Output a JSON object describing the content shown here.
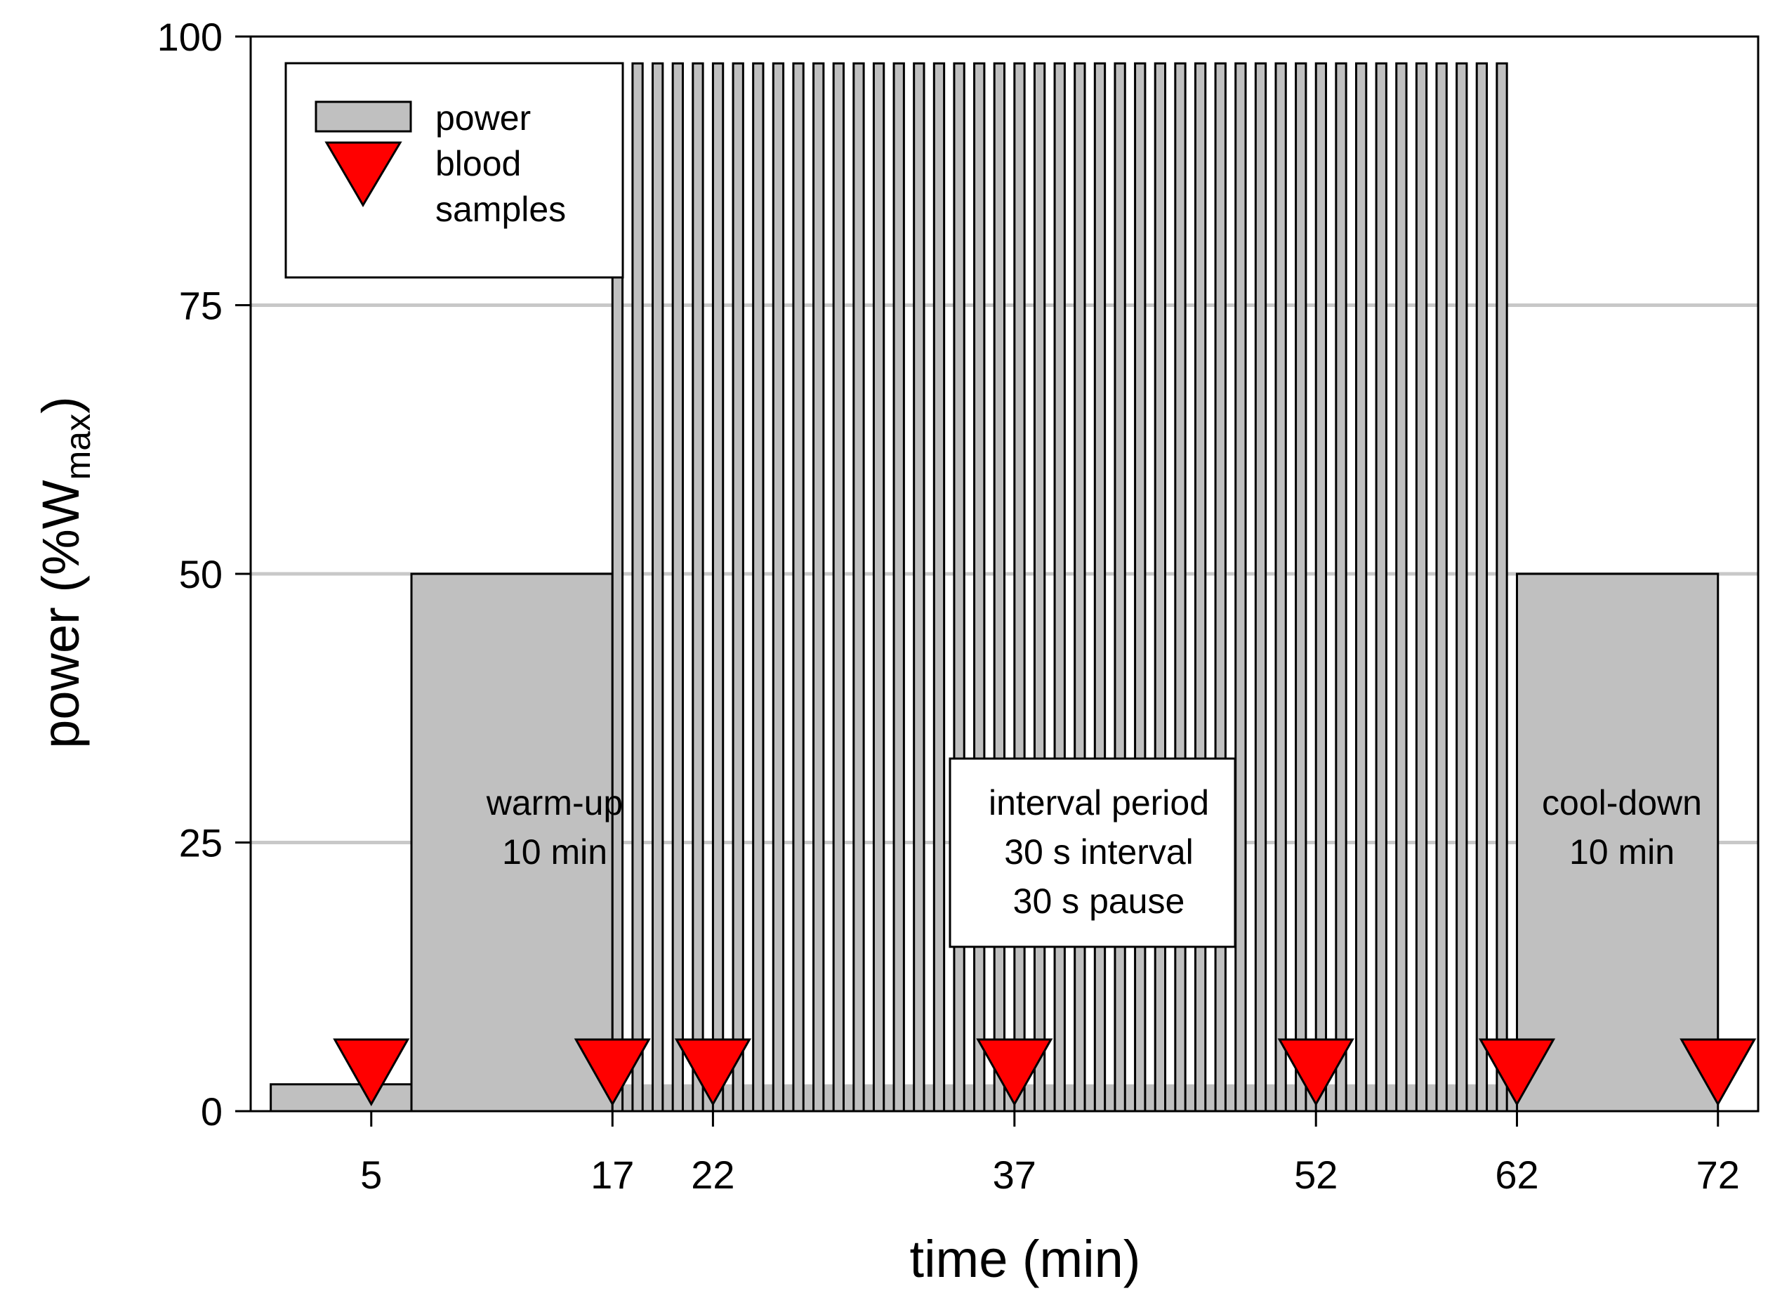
{
  "chart_data": {
    "type": "area",
    "title": "",
    "xlabel": "time (min)",
    "ylabel": {
      "main": "power (%W",
      "subscript": "max",
      "suffix": ")"
    },
    "xlim": [
      -1,
      74
    ],
    "ylim": [
      0,
      100
    ],
    "x_ticks": [
      5,
      17,
      22,
      37,
      52,
      62,
      72
    ],
    "y_ticks": [
      0,
      25,
      50,
      75,
      100
    ],
    "grid": "horizontal",
    "series": [
      {
        "name": "power",
        "color": "#c0c0c0",
        "protocol": [
          {
            "segment": "rest",
            "start": 0,
            "end": 7,
            "value": 2.5
          },
          {
            "segment": "warm-up",
            "start": 7,
            "end": 17,
            "value": 50
          },
          {
            "segment": "intervals",
            "start": 17,
            "end": 62,
            "interval_s": 30,
            "pause_s": 30,
            "interval_value": 97.5,
            "pause_value": 2.5
          },
          {
            "segment": "cool-down",
            "start": 62,
            "end": 72,
            "value": 50
          }
        ]
      },
      {
        "name": "blood samples",
        "marker": "inverted-triangle",
        "color": "#ff0000",
        "x": [
          5,
          17,
          22,
          37,
          52,
          62,
          72
        ],
        "y": [
          5,
          5,
          5,
          5,
          5,
          5,
          5
        ]
      }
    ],
    "legend": {
      "placement": "top-left",
      "entries": [
        {
          "label_lines": [
            "power"
          ]
        },
        {
          "label_lines": [
            "blood",
            "samples"
          ]
        }
      ]
    },
    "annotations": [
      {
        "id": "warmup",
        "x": 12,
        "y": 27.5,
        "lines": [
          "warm-up",
          "10 min"
        ],
        "boxed": false
      },
      {
        "id": "interval",
        "x": 37,
        "y": 27.5,
        "lines": [
          "interval period",
          "30 s interval",
          "30 s pause"
        ],
        "boxed": true
      },
      {
        "id": "cooldown",
        "x": 67,
        "y": 27.5,
        "lines": [
          "cool-down",
          "10 min"
        ],
        "boxed": false
      }
    ]
  }
}
